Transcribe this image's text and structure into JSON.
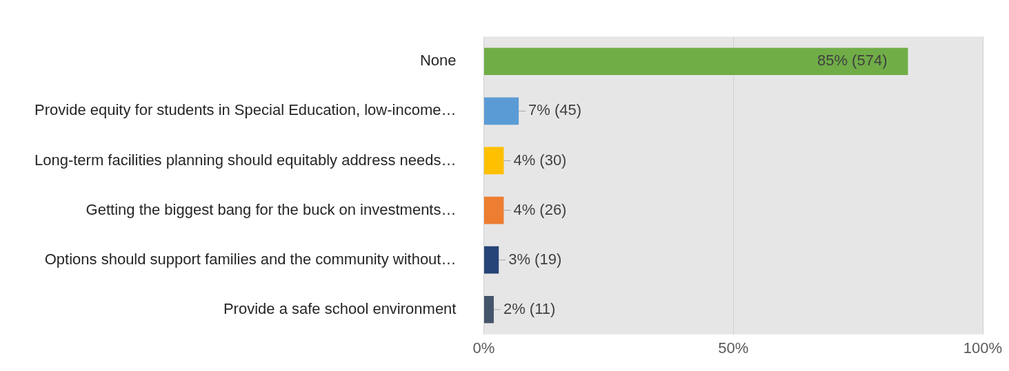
{
  "chart_data": {
    "type": "bar",
    "orientation": "horizontal",
    "categories": [
      "None",
      "Provide equity for students in Special Education, low-income…",
      "Long-term facilities planning should equitably address needs…",
      "Getting the biggest bang for the buck on investments…",
      "Options should support families and the community without…",
      "Provide a safe school environment"
    ],
    "values": [
      85,
      7,
      4,
      4,
      3,
      2
    ],
    "colors": [
      "#70ad47",
      "#5b9bd5",
      "#ffc000",
      "#ed7d31",
      "#264478",
      "#44546a"
    ],
    "value_labels": [
      "85% (574)",
      "7% (45)",
      "4% (30)",
      "4% (26)",
      "3% (19)",
      "2% (11)"
    ],
    "xlim": [
      0,
      100
    ],
    "xticks": [
      {
        "value": 0,
        "label": "0%"
      },
      {
        "value": 50,
        "label": "50%"
      },
      {
        "value": 100,
        "label": "100%"
      }
    ],
    "grid": "x",
    "legend": false
  }
}
